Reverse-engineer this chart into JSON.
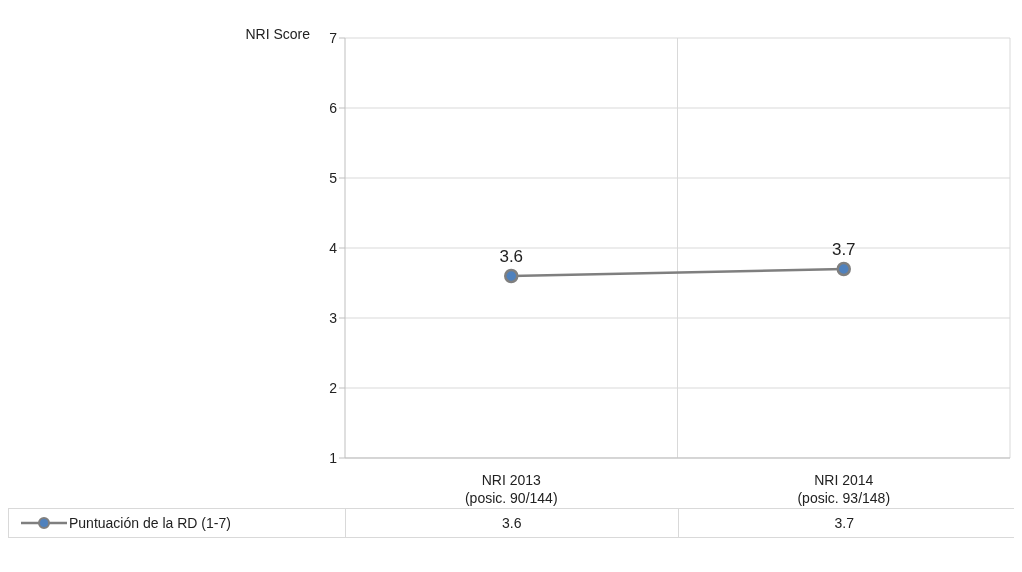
{
  "chart_data": {
    "type": "line",
    "ylabel": "NRI Score",
    "categories": [
      "NRI 2013\n(posic. 90/144)",
      "NRI 2014\n(posic. 93/148)"
    ],
    "series": [
      {
        "name": "Puntuación de la RD (1-7)",
        "color": "#7f7f7f",
        "colors": [
          "#4f81bd",
          "#4f81bd"
        ],
        "values": [
          3.6,
          3.7
        ],
        "value_labels": [
          "3.6",
          "3.7"
        ]
      }
    ],
    "ylim": [
      1,
      7
    ],
    "yticks": [
      1,
      2,
      3,
      4,
      5,
      6,
      7
    ],
    "annotations": [
      "3.6",
      "3.7"
    ],
    "grid": true,
    "legend": "bottom",
    "marker": "circle",
    "line_style": "solid"
  }
}
